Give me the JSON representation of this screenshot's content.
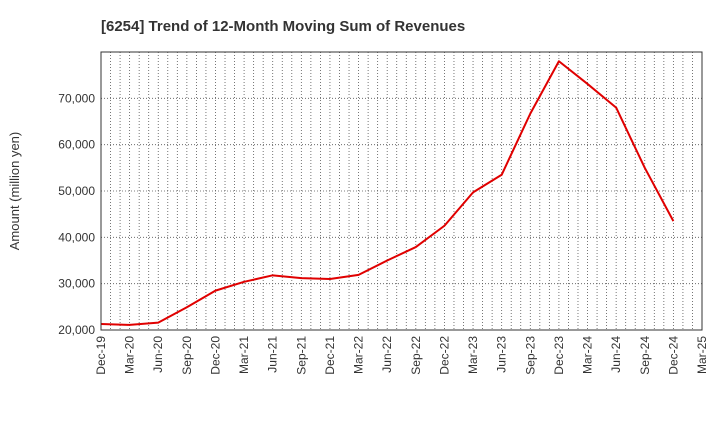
{
  "chart_data": {
    "type": "line",
    "title": "[6254]  Trend of 12-Month Moving Sum of Revenues",
    "ylabel": "Amount (million yen)",
    "xlabel": "",
    "ylim": [
      20000,
      80000
    ],
    "yticks": [
      20000,
      30000,
      40000,
      50000,
      60000,
      70000
    ],
    "ytick_labels": [
      "20,000",
      "30,000",
      "40,000",
      "50,000",
      "60,000",
      "70,000"
    ],
    "x_tick_labels": [
      "Dec-19",
      "Mar-20",
      "Jun-20",
      "Sep-20",
      "Dec-20",
      "Mar-21",
      "Jun-21",
      "Sep-21",
      "Dec-21",
      "Mar-22",
      "Jun-22",
      "Sep-22",
      "Dec-22",
      "Mar-23",
      "Jun-23",
      "Sep-23",
      "Dec-23",
      "Mar-24",
      "Jun-24",
      "Sep-24",
      "Dec-24",
      "Mar-25"
    ],
    "grid": true,
    "series": [
      {
        "color": "#e00000",
        "x": [
          "Dec-19",
          "Mar-20",
          "Jun-20",
          "Sep-20",
          "Dec-20",
          "Mar-21",
          "Jun-21",
          "Sep-21",
          "Dec-21",
          "Mar-22",
          "Jun-22",
          "Sep-22",
          "Dec-22",
          "Mar-23",
          "Jun-23",
          "Sep-23",
          "Dec-23",
          "Mar-24",
          "Jun-24",
          "Sep-24",
          "Dec-24"
        ],
        "values": [
          21300,
          21100,
          21600,
          24900,
          28500,
          30400,
          31800,
          31200,
          31000,
          31900,
          35000,
          37900,
          42500,
          49700,
          53500,
          66700,
          78000,
          73100,
          68000,
          55000,
          43500
        ]
      }
    ]
  }
}
